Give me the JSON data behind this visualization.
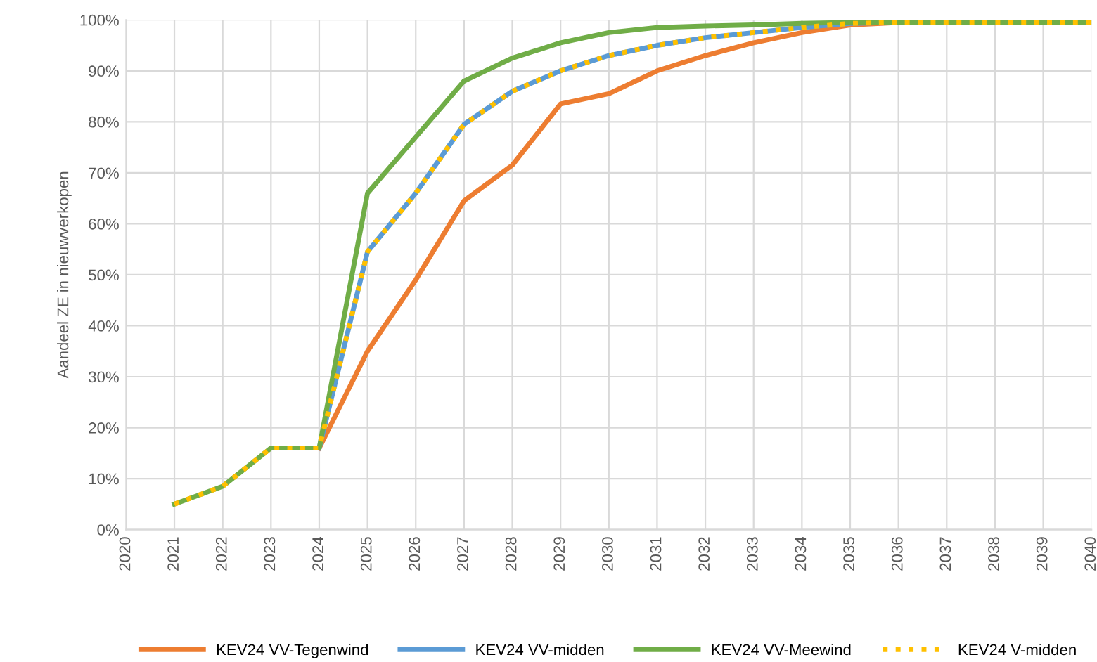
{
  "chart_data": {
    "type": "line",
    "ylabel": "Aandeel ZE in nieuwverkopen",
    "categories": [
      "2020",
      "2021",
      "2022",
      "2023",
      "2024",
      "2025",
      "2026",
      "2027",
      "2028",
      "2029",
      "2030",
      "2031",
      "2032",
      "2033",
      "2034",
      "2035",
      "2036",
      "2037",
      "2038",
      "2039",
      "2040"
    ],
    "ylim": [
      0,
      1
    ],
    "yticks": [
      {
        "value": 0,
        "label": "0%"
      },
      {
        "value": 0.1,
        "label": "10%"
      },
      {
        "value": 0.2,
        "label": "20%"
      },
      {
        "value": 0.3,
        "label": "30%"
      },
      {
        "value": 0.4,
        "label": "40%"
      },
      {
        "value": 0.5,
        "label": "50%"
      },
      {
        "value": 0.6,
        "label": "60%"
      },
      {
        "value": 0.7,
        "label": "70%"
      },
      {
        "value": 0.8,
        "label": "80%"
      },
      {
        "value": 0.9,
        "label": "90%"
      },
      {
        "value": 1,
        "label": "100%"
      }
    ],
    "grid": true,
    "legend": "bottom",
    "marker": "none",
    "series": [
      {
        "name": "KEV24 VV-Tegenwind",
        "color": "#ed7d31",
        "line_style": "solid",
        "values": [
          null,
          null,
          null,
          null,
          0.16,
          0.35,
          0.49,
          0.645,
          0.715,
          0.835,
          0.855,
          0.9,
          0.93,
          0.955,
          0.975,
          0.99,
          0.995,
          0.995,
          null,
          null,
          null
        ]
      },
      {
        "name": "KEV24 VV-midden",
        "color": "#5b9bd5",
        "line_style": "solid",
        "values": [
          null,
          null,
          null,
          null,
          0.16,
          0.545,
          0.66,
          0.795,
          0.86,
          0.9,
          0.93,
          0.95,
          0.965,
          0.975,
          0.985,
          0.993,
          0.995,
          0.995,
          null,
          null,
          null
        ]
      },
      {
        "name": "KEV24 VV-Meewind",
        "color": "#70ad47",
        "line_style": "solid",
        "values": [
          null,
          0.05,
          0.085,
          0.16,
          0.16,
          0.66,
          0.77,
          0.88,
          0.925,
          0.955,
          0.975,
          0.985,
          0.988,
          0.99,
          0.993,
          0.995,
          0.995,
          0.995,
          0.995,
          0.995,
          0.995
        ]
      },
      {
        "name": "KEV24 V-midden",
        "color": "#ffc000",
        "line_style": "dotted",
        "values": [
          null,
          0.05,
          0.085,
          0.16,
          0.16,
          0.545,
          0.66,
          0.795,
          0.86,
          0.9,
          0.93,
          0.95,
          0.965,
          0.975,
          0.985,
          0.993,
          0.995,
          0.995,
          0.995,
          0.995,
          0.995
        ]
      }
    ]
  }
}
